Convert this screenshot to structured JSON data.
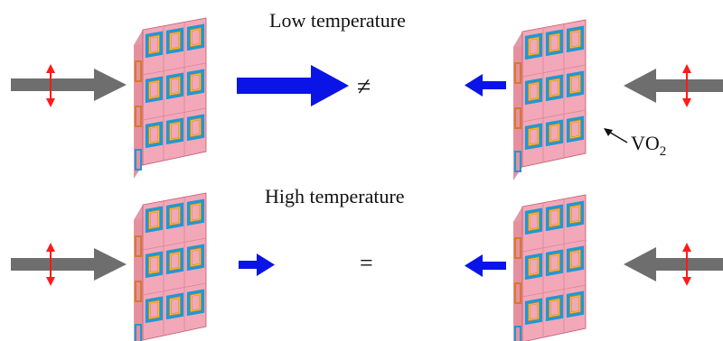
{
  "labels": {
    "low_temperature": "Low temperature",
    "high_temperature": "High temperature",
    "not_equal_symbol": "≠",
    "equal_symbol": "=",
    "material": "VO",
    "material_subscript": "2"
  },
  "colors": {
    "incident_arrow": "#6e6e6e",
    "transmitted_arrow": "#0a14e6",
    "polarization_arrow": "#ff1a1a",
    "substrate_front": "#f2a8b8",
    "substrate_side": "#e6909f",
    "ring_outer": "#1a9ad6",
    "ring_frame": "#d67a2a",
    "ring_inner": "#e8c53a"
  },
  "icons": {
    "incident_arrow": "gray-arrow-icon",
    "transmitted_arrow": "blue-arrow-icon",
    "polarization": "double-headed-arrow-icon",
    "metasurface": "metasurface-slab-icon"
  }
}
